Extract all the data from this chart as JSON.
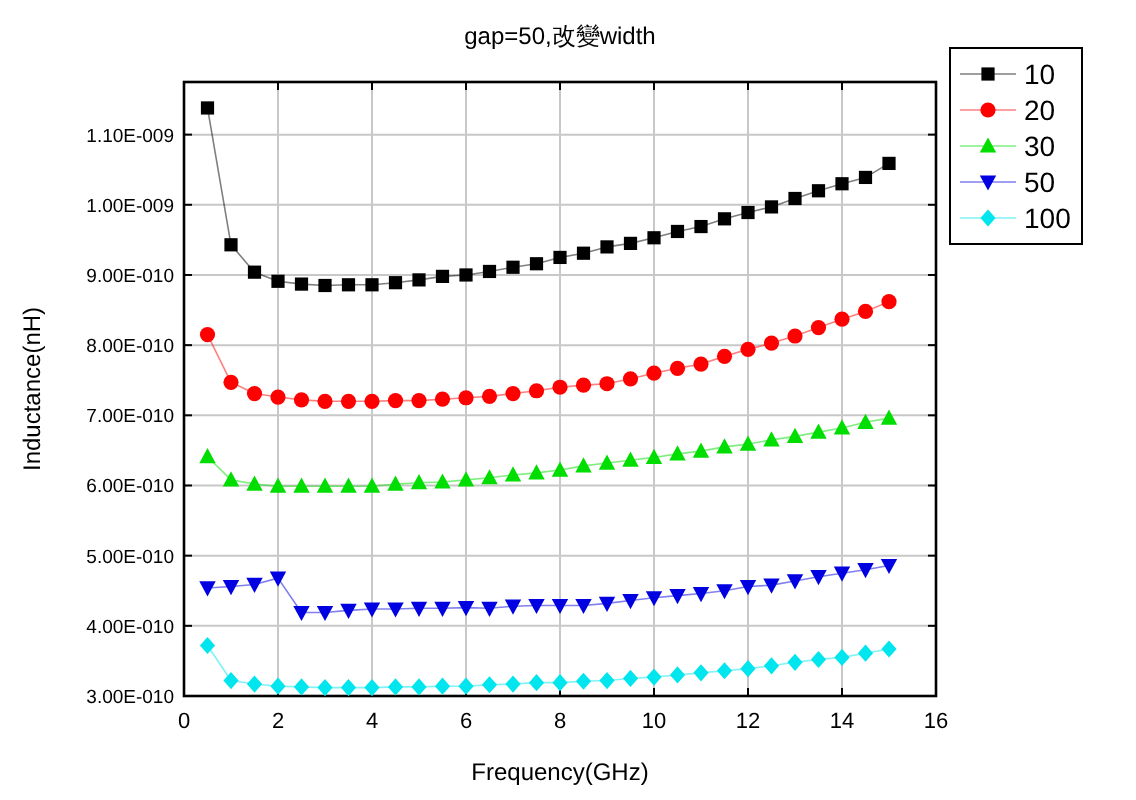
{
  "chart_data": {
    "type": "line",
    "title": "gap=50,改變width",
    "xlabel": "Frequency(GHz)",
    "ylabel": "Inductance(nH)",
    "x": [
      0.5,
      1,
      1.5,
      2,
      2.5,
      3,
      3.5,
      4,
      4.5,
      5,
      5.5,
      6,
      6.5,
      7,
      7.5,
      8,
      8.5,
      9,
      9.5,
      10,
      10.5,
      11,
      11.5,
      12,
      12.5,
      13,
      13.5,
      14,
      14.5,
      15
    ],
    "xlim": [
      0,
      16
    ],
    "xticks": [
      0,
      2,
      4,
      6,
      8,
      10,
      12,
      14,
      16
    ],
    "ylim": [
      3e-10,
      1.175e-09
    ],
    "yticks": [
      {
        "value": 3e-10,
        "label": "3.00E-010"
      },
      {
        "value": 4e-10,
        "label": "4.00E-010"
      },
      {
        "value": 5e-10,
        "label": "5.00E-010"
      },
      {
        "value": 6e-10,
        "label": "6.00E-010"
      },
      {
        "value": 7e-10,
        "label": "7.00E-010"
      },
      {
        "value": 8e-10,
        "label": "8.00E-010"
      },
      {
        "value": 9e-10,
        "label": "9.00E-010"
      },
      {
        "value": 1e-09,
        "label": "1.00E-009"
      },
      {
        "value": 1.1e-09,
        "label": "1.10E-009"
      }
    ],
    "grid": true,
    "legend": "top right",
    "line_style": "solid",
    "series": [
      {
        "name": "10",
        "color": "#000000",
        "marker": "square",
        "values": [
          1.138e-09,
          9.43e-10,
          9.04e-10,
          8.91e-10,
          8.87e-10,
          8.85e-10,
          8.86e-10,
          8.86e-10,
          8.89e-10,
          8.93e-10,
          8.98e-10,
          9e-10,
          9.05e-10,
          9.11e-10,
          9.16e-10,
          9.25e-10,
          9.31e-10,
          9.4e-10,
          9.45e-10,
          9.53e-10,
          9.62e-10,
          9.69e-10,
          9.8e-10,
          9.89e-10,
          9.97e-10,
          1.009e-09,
          1.02e-09,
          1.03e-09,
          1.039e-09,
          1.059e-09
        ]
      },
      {
        "name": "20",
        "color": "#ff0000",
        "marker": "circle",
        "values": [
          8.15e-10,
          7.47e-10,
          7.31e-10,
          7.26e-10,
          7.22e-10,
          7.2e-10,
          7.2e-10,
          7.2e-10,
          7.21e-10,
          7.21e-10,
          7.23e-10,
          7.25e-10,
          7.27e-10,
          7.31e-10,
          7.35e-10,
          7.4e-10,
          7.43e-10,
          7.45e-10,
          7.52e-10,
          7.6e-10,
          7.67e-10,
          7.73e-10,
          7.84e-10,
          7.94e-10,
          8.03e-10,
          8.13e-10,
          8.25e-10,
          8.37e-10,
          8.48e-10,
          8.62e-10
        ]
      },
      {
        "name": "30",
        "color": "#00dd00",
        "marker": "triangle",
        "values": [
          6.41e-10,
          6.08e-10,
          6.02e-10,
          5.99e-10,
          5.99e-10,
          5.99e-10,
          5.99e-10,
          5.99e-10,
          6.02e-10,
          6.04e-10,
          6.05e-10,
          6.08e-10,
          6.11e-10,
          6.15e-10,
          6.18e-10,
          6.22e-10,
          6.28e-10,
          6.32e-10,
          6.36e-10,
          6.4e-10,
          6.45e-10,
          6.49e-10,
          6.55e-10,
          6.59e-10,
          6.65e-10,
          6.7e-10,
          6.76e-10,
          6.82e-10,
          6.9e-10,
          6.96e-10
        ]
      },
      {
        "name": "50",
        "color": "#0000e0",
        "marker": "triangle-down",
        "values": [
          4.54e-10,
          4.56e-10,
          4.59e-10,
          4.68e-10,
          4.19e-10,
          4.19e-10,
          4.22e-10,
          4.24e-10,
          4.24e-10,
          4.25e-10,
          4.25e-10,
          4.26e-10,
          4.25e-10,
          4.28e-10,
          4.29e-10,
          4.29e-10,
          4.29e-10,
          4.32e-10,
          4.36e-10,
          4.4e-10,
          4.43e-10,
          4.46e-10,
          4.5e-10,
          4.56e-10,
          4.58e-10,
          4.64e-10,
          4.7e-10,
          4.75e-10,
          4.8e-10,
          4.86e-10
        ]
      },
      {
        "name": "100",
        "color": "#00e5ee",
        "marker": "diamond",
        "values": [
          3.72e-10,
          3.22e-10,
          3.17e-10,
          3.14e-10,
          3.13e-10,
          3.12e-10,
          3.12e-10,
          3.12e-10,
          3.13e-10,
          3.13e-10,
          3.14e-10,
          3.14e-10,
          3.16e-10,
          3.17e-10,
          3.19e-10,
          3.19e-10,
          3.21e-10,
          3.22e-10,
          3.25e-10,
          3.27e-10,
          3.3e-10,
          3.33e-10,
          3.36e-10,
          3.39e-10,
          3.43e-10,
          3.48e-10,
          3.52e-10,
          3.55e-10,
          3.61e-10,
          3.67e-10
        ]
      }
    ]
  }
}
